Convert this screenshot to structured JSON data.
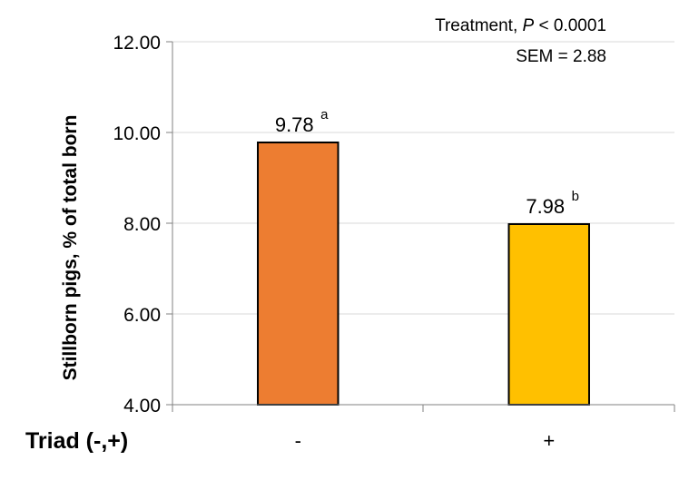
{
  "chart_data": {
    "type": "bar",
    "categories": [
      "-",
      "+"
    ],
    "values": [
      9.78,
      7.98
    ],
    "value_labels": [
      "9.78",
      "7.98"
    ],
    "superscripts": [
      "a",
      "b"
    ],
    "bar_colors": [
      "#ED7D31",
      "#FFC000"
    ],
    "bar_outline": "#000000",
    "xlabel": "Triad (-,+)",
    "ylabel": "Stillborn pigs, % of total born",
    "ylim": [
      4.0,
      12.0
    ],
    "yticks": [
      "4.00",
      "6.00",
      "8.00",
      "10.00",
      "12.00"
    ],
    "ytick_values": [
      4,
      6,
      8,
      10,
      12
    ],
    "grid": true,
    "grid_color": "#d9d9d9",
    "annotation": {
      "line1_prefix": "Treatment, ",
      "line1_p": "P",
      "line1_suffix": " < 0.0001",
      "line2": "SEM = 2.88"
    }
  }
}
